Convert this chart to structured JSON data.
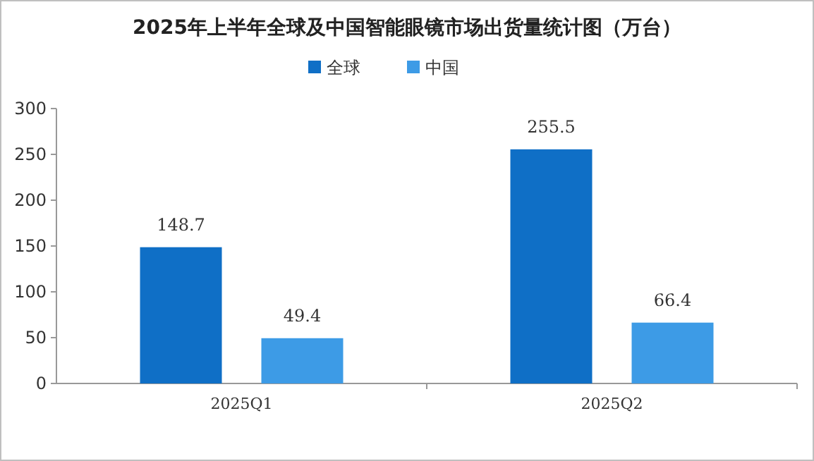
{
  "chart_data": {
    "type": "bar",
    "title": "2025年上半年全球及中国智能眼镜市场出货量统计图（万台）",
    "categories": [
      "2025Q1",
      "2025Q2"
    ],
    "series": [
      {
        "name": "全球",
        "color": "#0f6fc6",
        "values": [
          148.7,
          255.5
        ]
      },
      {
        "name": "中国",
        "color": "#3d9be6",
        "values": [
          49.4,
          66.4
        ]
      }
    ],
    "ylim": [
      0,
      300
    ],
    "yticks": [
      0,
      50,
      100,
      150,
      200,
      250,
      300
    ],
    "data_labels": true,
    "legend": "top",
    "grid": false
  }
}
